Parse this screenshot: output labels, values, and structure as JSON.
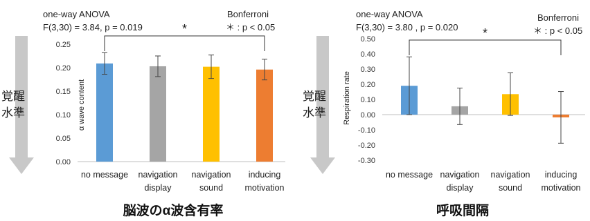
{
  "side_label": {
    "line1": "覚醒",
    "line2": "水準"
  },
  "chart_data": [
    {
      "type": "bar",
      "title": "",
      "caption": "脳波のα波含有率",
      "ylabel": "α wave content",
      "xlabel": "",
      "categories": [
        [
          "no message"
        ],
        [
          "navigation",
          "display"
        ],
        [
          "navigation",
          "sound"
        ],
        [
          "inducing",
          "motivation"
        ]
      ],
      "values": [
        0.209,
        0.203,
        0.202,
        0.196
      ],
      "errors": [
        0.023,
        0.022,
        0.025,
        0.022
      ],
      "colors": [
        "#5b9bd5",
        "#a5a5a5",
        "#ffc000",
        "#ed7d31"
      ],
      "ylim": [
        0,
        0.25
      ],
      "yticks": [
        0.0,
        0.05,
        0.1,
        0.15,
        0.2,
        0.25
      ],
      "ytick_labels": [
        "0.00",
        "0.05",
        "0.10",
        "0.15",
        "0.20",
        "0.25"
      ],
      "grid": false,
      "stats": {
        "line1": "one-way ANOVA",
        "line2": "F(3,30) = 3.84, p = 0.019"
      },
      "posthoc": {
        "line1": "Bonferroni",
        "line2": "＊ : p < 0.05"
      },
      "significance": {
        "from": 0,
        "to": 3,
        "mark": "*"
      }
    },
    {
      "type": "bar",
      "title": "",
      "caption": "呼吸間隔",
      "ylabel": "Respiration rate",
      "xlabel": "",
      "categories": [
        [
          "no message"
        ],
        [
          "navigation",
          "display"
        ],
        [
          "navigation",
          "sound"
        ],
        [
          "inducing",
          "motivation"
        ]
      ],
      "values": [
        0.19,
        0.055,
        0.135,
        -0.018
      ],
      "errors": [
        0.19,
        0.12,
        0.14,
        0.17
      ],
      "colors": [
        "#5b9bd5",
        "#a5a5a5",
        "#ffc000",
        "#ed7d31"
      ],
      "ylim": [
        -0.3,
        0.5
      ],
      "yticks": [
        -0.3,
        -0.2,
        -0.1,
        0.0,
        0.1,
        0.2,
        0.3,
        0.4,
        0.5
      ],
      "ytick_labels": [
        "-0.30",
        "-0.20",
        "-0.10",
        "0.00",
        "0.10",
        "0.20",
        "0.30",
        "0.40",
        "0.50"
      ],
      "grid": false,
      "stats": {
        "line1": "one-way ANOVA",
        "line2": "F(3,30) = 3.80 , p = 0.020"
      },
      "posthoc": {
        "line1": "Bonferroni",
        "line2": "＊ : p < 0.05"
      },
      "significance": {
        "from": 0,
        "to": 3,
        "mark": "*"
      }
    }
  ],
  "colors": {
    "arrow": "#c8c8c8",
    "axis": "#bfbfbf",
    "errorbar": "#444444",
    "bracket": "#333333"
  }
}
